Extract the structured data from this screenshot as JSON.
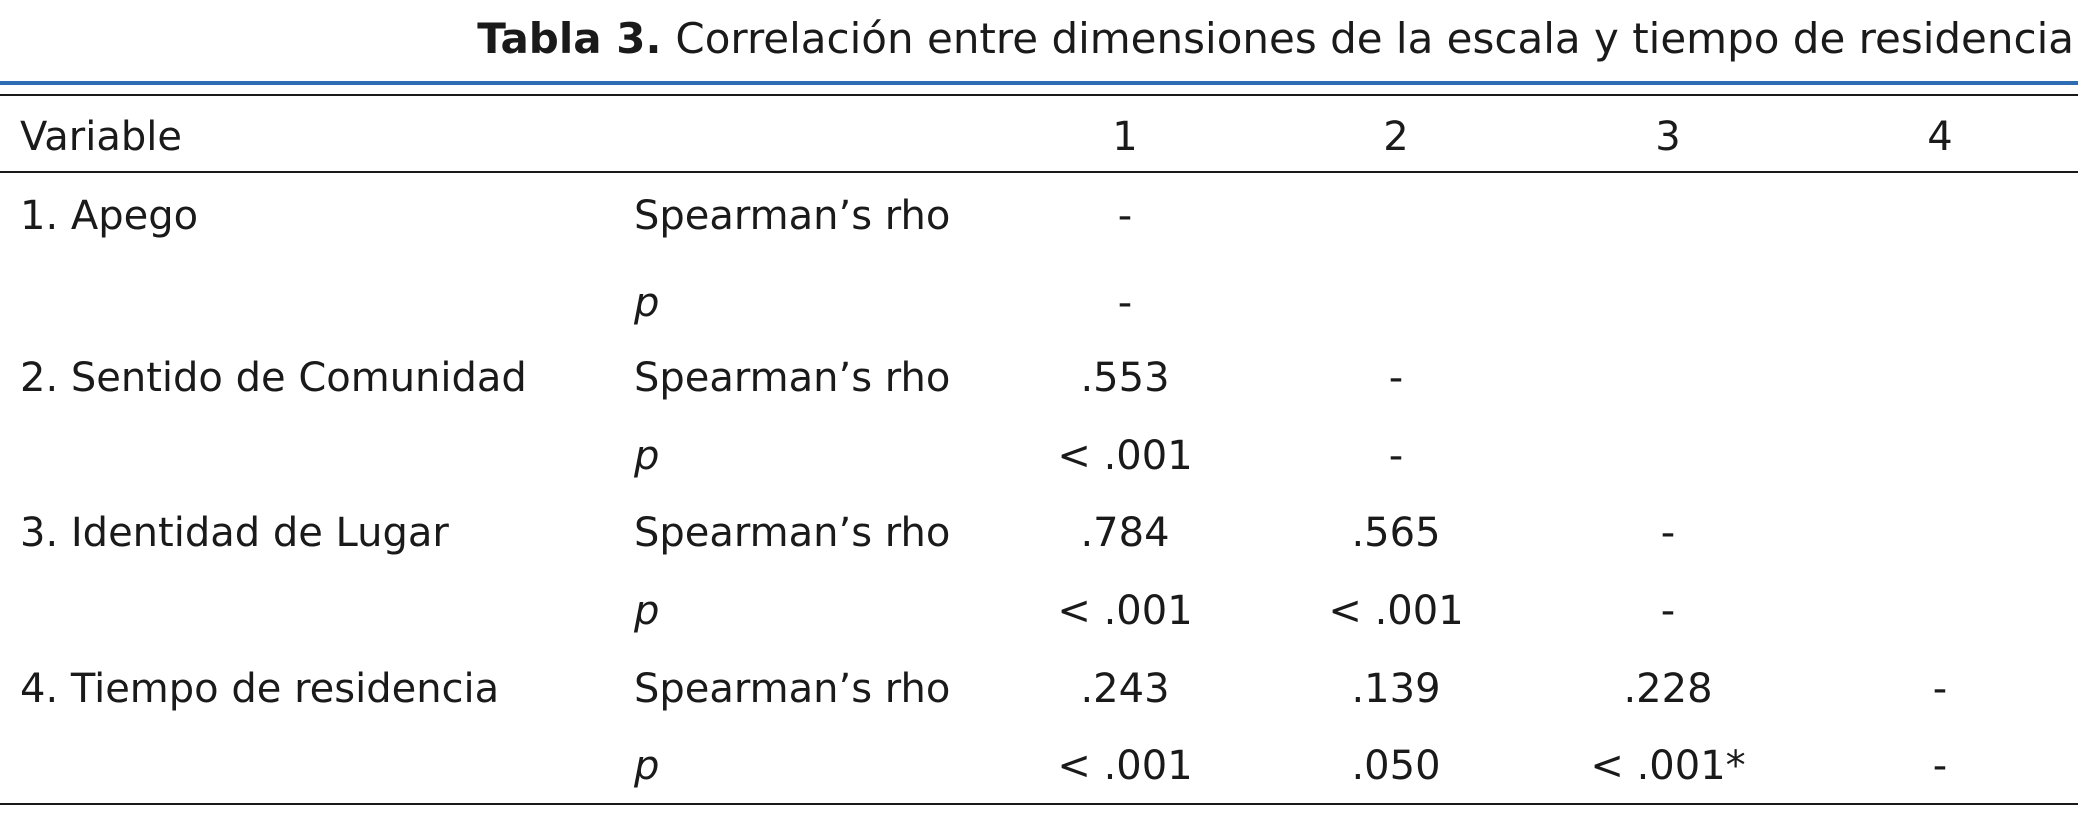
{
  "caption": {
    "label": "Tabla 3.",
    "text": "Correlación entre dimensiones de la escala y tiempo de residencia"
  },
  "header": {
    "variable": "Variable",
    "cols": [
      "1",
      "2",
      "3",
      "4"
    ]
  },
  "rows": [
    {
      "variable": "1. Apego",
      "rho_label": "Spearman’s rho",
      "p_label": "p",
      "rho": [
        "-",
        "",
        "",
        ""
      ],
      "p": [
        "-",
        "",
        "",
        ""
      ]
    },
    {
      "variable": "2. Sentido de Comunidad",
      "rho_label": "Spearman’s rho",
      "p_label": "p",
      "rho": [
        ".553",
        "-",
        "",
        ""
      ],
      "p": [
        "< .001",
        "-",
        "",
        ""
      ]
    },
    {
      "variable": "3. Identidad de Lugar",
      "rho_label": "Spearman’s rho",
      "p_label": "p",
      "rho": [
        ".784",
        ".565",
        "-",
        ""
      ],
      "p": [
        "< .001",
        "< .001",
        "-",
        ""
      ]
    },
    {
      "variable": "4. Tiempo de residencia",
      "rho_label": "Spearman’s rho",
      "p_label": "p",
      "rho": [
        ".243",
        ".139",
        ".228",
        "-"
      ],
      "p": [
        "< .001",
        ".050",
        "< .001*",
        "-"
      ]
    }
  ],
  "colors": {
    "accent_rule": "#2e6db4",
    "text": "#1a1a1a"
  }
}
